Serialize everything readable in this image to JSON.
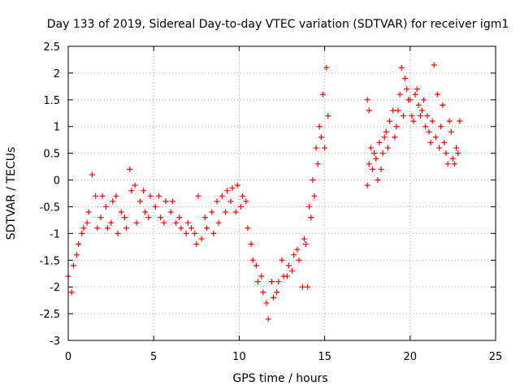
{
  "chart_data": {
    "type": "scatter",
    "title": "Day 133 of 2019, Sidereal Day-to-day VTEC variation (SDTVAR) for receiver igm1",
    "xlabel": "GPS time / hours",
    "ylabel": "SDTVAR / TECUs",
    "xlim": [
      0,
      25
    ],
    "ylim": [
      -3,
      2.5
    ],
    "xticks": [
      "0",
      "5",
      "10",
      "15",
      "20",
      "25"
    ],
    "yticks": [
      "-3",
      "-2.5",
      "-2",
      "-1.5",
      "-1",
      "-0.5",
      "0",
      "0.5",
      "1",
      "1.5",
      "2",
      "2.5"
    ],
    "grid": true,
    "marker": "+",
    "series": [
      {
        "name": "SDTVAR",
        "color": "#ff0000",
        "points": [
          [
            0.0,
            -1.8
          ],
          [
            0.3,
            -1.6
          ],
          [
            0.6,
            -1.2
          ],
          [
            0.9,
            -0.9
          ],
          [
            1.2,
            -0.6
          ],
          [
            1.4,
            0.1
          ],
          [
            1.6,
            -0.3
          ],
          [
            1.9,
            -0.7
          ],
          [
            2.2,
            -0.5
          ],
          [
            2.5,
            -0.8
          ],
          [
            2.8,
            -0.3
          ],
          [
            3.1,
            -0.6
          ],
          [
            3.4,
            -0.9
          ],
          [
            3.6,
            0.2
          ],
          [
            3.9,
            -0.1
          ],
          [
            4.2,
            -0.4
          ],
          [
            4.5,
            -0.6
          ],
          [
            4.8,
            -0.3
          ],
          [
            5.1,
            -0.5
          ],
          [
            5.4,
            -0.7
          ],
          [
            5.7,
            -0.4
          ],
          [
            6.0,
            -0.6
          ],
          [
            6.3,
            -0.8
          ],
          [
            6.6,
            -0.9
          ],
          [
            6.9,
            -1.0
          ],
          [
            7.2,
            -0.9
          ],
          [
            7.5,
            -1.2
          ],
          [
            7.8,
            -1.1
          ],
          [
            8.1,
            -0.9
          ],
          [
            8.4,
            -0.6
          ],
          [
            8.7,
            -0.4
          ],
          [
            9.0,
            -0.3
          ],
          [
            9.3,
            -0.2
          ],
          [
            9.6,
            -0.15
          ],
          [
            9.9,
            -0.1
          ],
          [
            10.2,
            -0.3
          ],
          [
            10.5,
            -0.9
          ],
          [
            10.8,
            -1.5
          ],
          [
            11.1,
            -1.9
          ],
          [
            11.4,
            -2.1
          ],
          [
            11.7,
            -2.6
          ],
          [
            12.0,
            -2.2
          ],
          [
            12.3,
            -1.9
          ],
          [
            12.6,
            -1.8
          ],
          [
            12.9,
            -1.6
          ],
          [
            13.2,
            -1.4
          ],
          [
            13.5,
            -1.5
          ],
          [
            13.8,
            -1.1
          ],
          [
            14.1,
            -0.5
          ],
          [
            14.3,
            0.0
          ],
          [
            14.5,
            0.6
          ],
          [
            14.7,
            1.0
          ],
          [
            14.9,
            1.6
          ],
          [
            15.1,
            2.1
          ],
          [
            0.2,
            -2.1
          ],
          [
            0.5,
            -1.4
          ],
          [
            0.8,
            -1.0
          ],
          [
            1.1,
            -0.8
          ],
          [
            1.7,
            -0.9
          ],
          [
            2.0,
            -0.3
          ],
          [
            2.3,
            -0.9
          ],
          [
            2.6,
            -0.4
          ],
          [
            2.9,
            -1.0
          ],
          [
            3.3,
            -0.7
          ],
          [
            3.7,
            -0.2
          ],
          [
            4.0,
            -0.8
          ],
          [
            4.4,
            -0.2
          ],
          [
            4.7,
            -0.7
          ],
          [
            5.3,
            -0.3
          ],
          [
            5.6,
            -0.8
          ],
          [
            6.1,
            -0.4
          ],
          [
            6.5,
            -0.7
          ],
          [
            7.0,
            -0.8
          ],
          [
            7.4,
            -1.0
          ],
          [
            7.6,
            -0.3
          ],
          [
            8.0,
            -0.7
          ],
          [
            8.5,
            -1.0
          ],
          [
            8.8,
            -0.8
          ],
          [
            9.2,
            -0.6
          ],
          [
            9.5,
            -0.4
          ],
          [
            9.8,
            -0.6
          ],
          [
            10.1,
            -0.5
          ],
          [
            10.4,
            -0.4
          ],
          [
            10.7,
            -1.2
          ],
          [
            11.0,
            -1.6
          ],
          [
            11.3,
            -1.8
          ],
          [
            11.6,
            -2.3
          ],
          [
            11.9,
            -1.9
          ],
          [
            12.2,
            -2.1
          ],
          [
            12.5,
            -1.5
          ],
          [
            12.8,
            -1.8
          ],
          [
            13.1,
            -1.7
          ],
          [
            13.4,
            -1.3
          ],
          [
            13.7,
            -2.0
          ],
          [
            13.9,
            -1.2
          ],
          [
            14.0,
            -2.0
          ],
          [
            14.2,
            -0.7
          ],
          [
            14.4,
            -0.3
          ],
          [
            14.6,
            0.3
          ],
          [
            14.8,
            0.8
          ],
          [
            15.0,
            0.6
          ],
          [
            15.2,
            1.2
          ],
          [
            17.5,
            -0.1
          ],
          [
            17.6,
            0.3
          ],
          [
            17.7,
            0.6
          ],
          [
            17.8,
            0.2
          ],
          [
            17.9,
            0.5
          ],
          [
            18.0,
            0.4
          ],
          [
            18.2,
            0.7
          ],
          [
            18.4,
            0.5
          ],
          [
            18.6,
            0.9
          ],
          [
            18.8,
            1.1
          ],
          [
            19.0,
            1.3
          ],
          [
            19.2,
            1.0
          ],
          [
            19.4,
            1.6
          ],
          [
            19.5,
            2.1
          ],
          [
            19.7,
            1.9
          ],
          [
            19.9,
            1.5
          ],
          [
            20.1,
            1.2
          ],
          [
            20.3,
            1.6
          ],
          [
            20.5,
            1.4
          ],
          [
            20.7,
            1.3
          ],
          [
            20.9,
            1.0
          ],
          [
            21.1,
            0.9
          ],
          [
            21.3,
            1.1
          ],
          [
            21.4,
            2.15
          ],
          [
            21.5,
            0.8
          ],
          [
            21.7,
            0.6
          ],
          [
            21.9,
            1.4
          ],
          [
            22.1,
            0.5
          ],
          [
            22.3,
            1.1
          ],
          [
            22.5,
            0.4
          ],
          [
            22.7,
            0.6
          ],
          [
            22.9,
            1.1
          ],
          [
            17.5,
            1.5
          ],
          [
            17.6,
            1.3
          ],
          [
            18.1,
            0.0
          ],
          [
            18.3,
            0.2
          ],
          [
            18.5,
            0.8
          ],
          [
            18.7,
            0.6
          ],
          [
            19.1,
            0.8
          ],
          [
            19.3,
            1.3
          ],
          [
            19.6,
            1.2
          ],
          [
            19.8,
            1.7
          ],
          [
            20.0,
            1.5
          ],
          [
            20.2,
            1.1
          ],
          [
            20.4,
            1.7
          ],
          [
            20.6,
            1.2
          ],
          [
            20.8,
            1.5
          ],
          [
            21.0,
            1.2
          ],
          [
            21.2,
            0.7
          ],
          [
            21.6,
            1.6
          ],
          [
            21.8,
            1.0
          ],
          [
            22.0,
            0.7
          ],
          [
            22.2,
            0.3
          ],
          [
            22.4,
            0.9
          ],
          [
            22.6,
            0.3
          ],
          [
            22.8,
            0.5
          ]
        ]
      }
    ]
  }
}
